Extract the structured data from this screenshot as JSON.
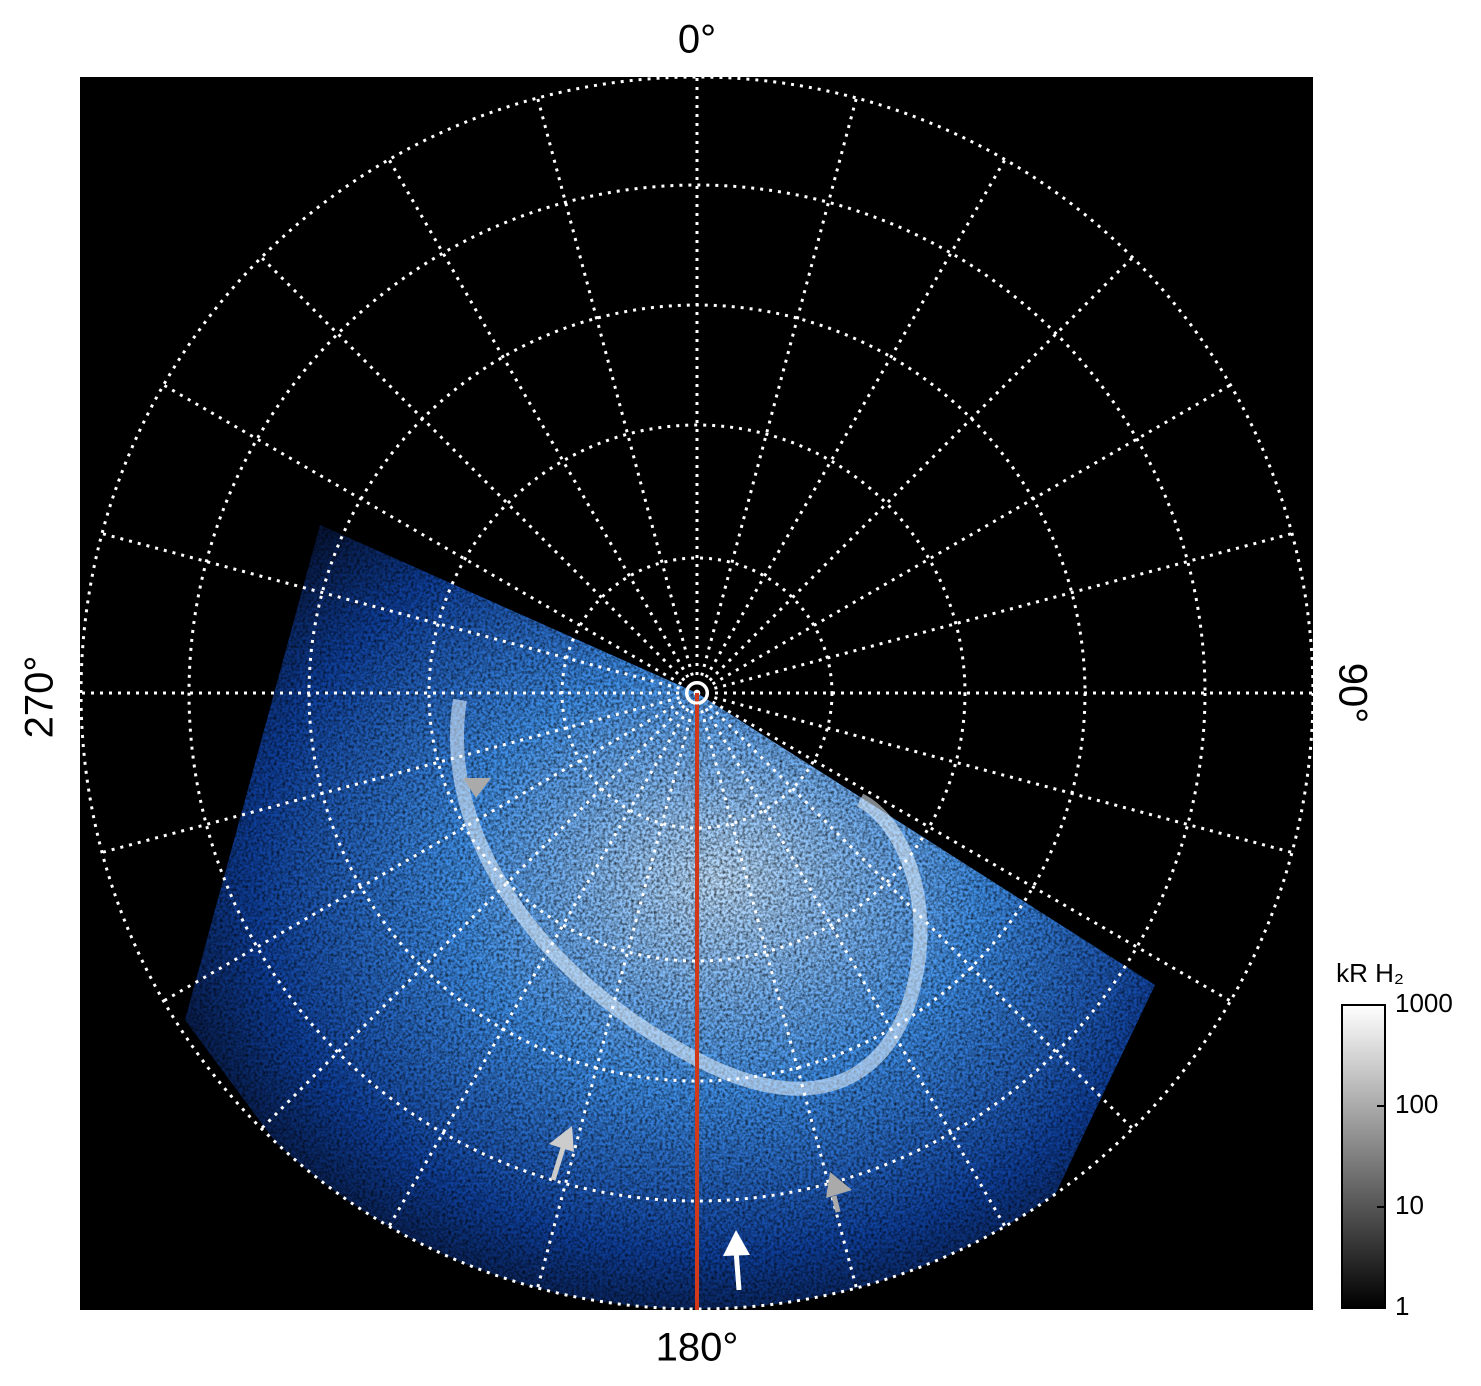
{
  "figure": {
    "longitude_labels": {
      "top": "0°",
      "right": "90°",
      "bottom": "180°",
      "left": "270°"
    },
    "colorbar": {
      "label": "kR H₂",
      "lim": [
        1,
        1000
      ],
      "ticks": [
        1,
        10,
        100,
        1000
      ],
      "log": true
    }
  }
}
